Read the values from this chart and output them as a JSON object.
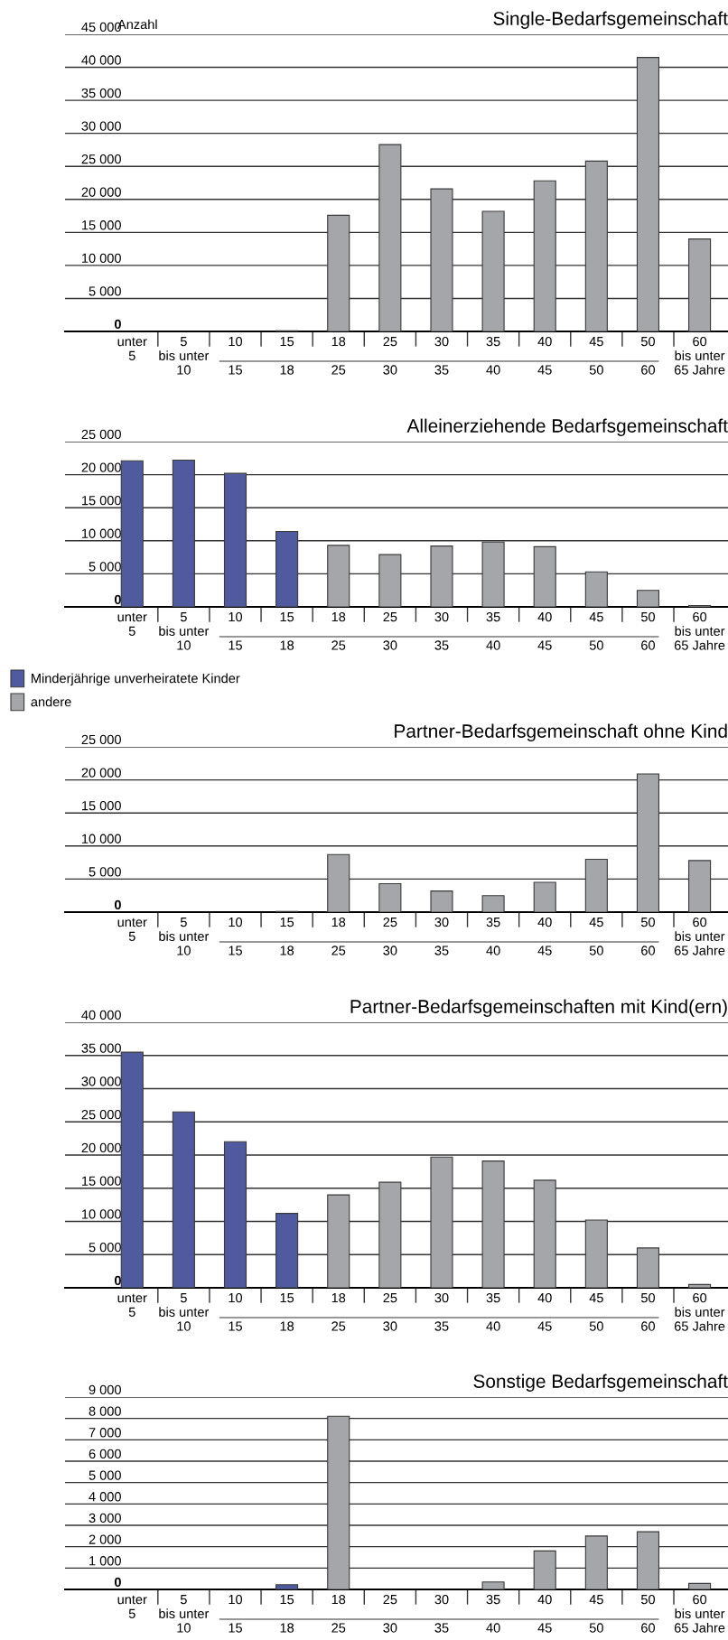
{
  "chart_data": [
    {
      "type": "bar",
      "stacked": true,
      "title": "Single-Bedarfsgemeinschaft",
      "ylabel": "Anzahl",
      "categories": [
        "unter\n5",
        "5\nbis unter\n10",
        "10\n\n15",
        "15\n\n18",
        "18\n\n25",
        "25\n\n30",
        "30\n\n35",
        "35\n\n40",
        "40\n\n45",
        "45\n\n50",
        "50\n\n60",
        "60\nbis unter\n65 Jahre"
      ],
      "series": [
        {
          "color": "#4f5b9e",
          "values": [
            null,
            null,
            null,
            100,
            null,
            null,
            null,
            null,
            null,
            null,
            null,
            null
          ]
        },
        {
          "color": "#a5a6aa",
          "values": [
            null,
            null,
            null,
            null,
            17600,
            28300,
            21600,
            18200,
            22800,
            25800,
            41500,
            14000
          ]
        }
      ],
      "ylim": [
        0,
        45000
      ],
      "yticks": [
        {
          "value": 0,
          "label": "0"
        },
        {
          "value": 5000,
          "label": "5 000"
        },
        {
          "value": 10000,
          "label": "10 000"
        },
        {
          "value": 15000,
          "label": "15 000"
        },
        {
          "value": 20000,
          "label": "20 000"
        },
        {
          "value": 25000,
          "label": "25 000"
        },
        {
          "value": 30000,
          "label": "30 000"
        },
        {
          "value": 35000,
          "label": "35 000"
        },
        {
          "value": 40000,
          "label": "40 000"
        },
        {
          "value": 45000,
          "label": "45 000"
        }
      ],
      "grid": "y",
      "legend": false
    },
    {
      "type": "bar",
      "stacked": true,
      "title": "Alleinerziehende Bedarfsgemeinschaft",
      "categories": [
        "unter\n5",
        "5\nbis unter\n10",
        "10\n\n15",
        "15\n\n18",
        "18\n\n25",
        "25\n\n30",
        "30\n\n35",
        "35\n\n40",
        "40\n\n45",
        "45\n\n50",
        "50\n\n60",
        "60\nbis unter\n65 Jahre"
      ],
      "series": [
        {
          "name": "Minderjährige unverheiratete Kinder",
          "color": "#4f5b9e",
          "values": [
            22100,
            22200,
            20200,
            11400,
            null,
            null,
            null,
            null,
            null,
            null,
            null,
            null
          ]
        },
        {
          "name": "andere",
          "color": "#a5a6aa",
          "values": [
            null,
            null,
            null,
            null,
            9300,
            7900,
            9200,
            9800,
            9100,
            5300,
            2500,
            200
          ]
        }
      ],
      "ylim": [
        0,
        25000
      ],
      "yticks": [
        {
          "value": 0,
          "label": "0"
        },
        {
          "value": 5000,
          "label": "5 000"
        },
        {
          "value": 10000,
          "label": "10 000"
        },
        {
          "value": 15000,
          "label": "15 000"
        },
        {
          "value": 20000,
          "label": "20 000"
        },
        {
          "value": 25000,
          "label": "25 000"
        }
      ],
      "grid": "y",
      "legend": "bottom left"
    },
    {
      "type": "bar",
      "stacked": true,
      "title": "Partner-Bedarfsgemeinschaft ohne Kind",
      "categories": [
        "unter\n5",
        "5\nbis unter\n10",
        "10\n\n15",
        "15\n\n18",
        "18\n\n25",
        "25\n\n30",
        "30\n\n35",
        "35\n\n40",
        "40\n\n45",
        "45\n\n50",
        "50\n\n60",
        "60\nbis unter\n65 Jahre"
      ],
      "series": [
        {
          "color": "#4f5b9e",
          "values": [
            null,
            null,
            null,
            100,
            null,
            null,
            null,
            null,
            null,
            null,
            null,
            null
          ]
        },
        {
          "color": "#a5a6aa",
          "values": [
            null,
            null,
            null,
            null,
            8700,
            4300,
            3200,
            2500,
            4500,
            8000,
            20900,
            7800
          ]
        }
      ],
      "ylim": [
        0,
        25000
      ],
      "yticks": [
        {
          "value": 0,
          "label": "0"
        },
        {
          "value": 5000,
          "label": "5 000"
        },
        {
          "value": 10000,
          "label": "10 000"
        },
        {
          "value": 15000,
          "label": "15 000"
        },
        {
          "value": 20000,
          "label": "20 000"
        },
        {
          "value": 25000,
          "label": "25 000"
        }
      ],
      "grid": "y",
      "legend": false
    },
    {
      "type": "bar",
      "stacked": true,
      "title": "Partner-Bedarfsgemeinschaften mit Kind(ern)",
      "categories": [
        "unter\n5",
        "5\nbis unter\n10",
        "10\n\n15",
        "15\n\n18",
        "18\n\n25",
        "25\n\n30",
        "30\n\n35",
        "35\n\n40",
        "40\n\n45",
        "45\n\n50",
        "50\n\n60",
        "60\nbis unter\n65 Jahre"
      ],
      "series": [
        {
          "color": "#4f5b9e",
          "values": [
            35500,
            26500,
            22000,
            11200,
            null,
            null,
            null,
            null,
            null,
            null,
            null,
            null
          ]
        },
        {
          "color": "#a5a6aa",
          "values": [
            null,
            null,
            null,
            null,
            14000,
            15900,
            19700,
            19100,
            16200,
            10200,
            6000,
            500
          ]
        }
      ],
      "ylim": [
        0,
        40000
      ],
      "yticks": [
        {
          "value": 0,
          "label": "0"
        },
        {
          "value": 5000,
          "label": "5 000"
        },
        {
          "value": 10000,
          "label": "10 000"
        },
        {
          "value": 15000,
          "label": "15 000"
        },
        {
          "value": 20000,
          "label": "20 000"
        },
        {
          "value": 25000,
          "label": "25 000"
        },
        {
          "value": 30000,
          "label": "30 000"
        },
        {
          "value": 35000,
          "label": "35 000"
        },
        {
          "value": 40000,
          "label": "40 000"
        }
      ],
      "grid": "y",
      "legend": false
    },
    {
      "type": "bar",
      "stacked": true,
      "title": "Sonstige Bedarfsgemeinschaft",
      "categories": [
        "unter\n5",
        "5\nbis unter\n10",
        "10\n\n15",
        "15\n\n18",
        "18\n\n25",
        "25\n\n30",
        "30\n\n35",
        "35\n\n40",
        "40\n\n45",
        "45\n\n50",
        "50\n\n60",
        "60\nbis unter\n65 Jahre"
      ],
      "series": [
        {
          "color": "#4f5b9e",
          "values": [
            null,
            null,
            null,
            220,
            null,
            null,
            null,
            null,
            null,
            null,
            null,
            null
          ]
        },
        {
          "color": "#a5a6aa",
          "values": [
            null,
            null,
            null,
            null,
            8100,
            null,
            null,
            350,
            1800,
            2500,
            2700,
            280
          ]
        }
      ],
      "ylim": [
        0,
        9000
      ],
      "yticks": [
        {
          "value": 0,
          "label": "0"
        },
        {
          "value": 1000,
          "label": "1 000"
        },
        {
          "value": 2000,
          "label": "2 000"
        },
        {
          "value": 3000,
          "label": "3 000"
        },
        {
          "value": 4000,
          "label": "4 000"
        },
        {
          "value": 5000,
          "label": "5 000"
        },
        {
          "value": 6000,
          "label": "6 000"
        },
        {
          "value": 7000,
          "label": "7 000"
        },
        {
          "value": 8000,
          "label": "8 000"
        },
        {
          "value": 9000,
          "label": "9 000"
        }
      ],
      "grid": "y",
      "legend": false
    }
  ]
}
